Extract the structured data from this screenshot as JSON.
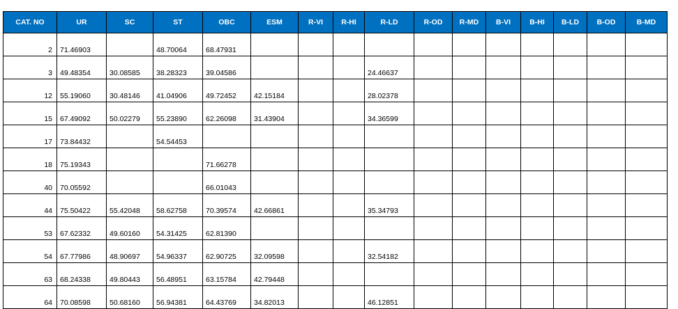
{
  "table": {
    "headers": [
      "CAT. NO",
      "UR",
      "SC",
      "ST",
      "OBC",
      "ESM",
      "R-VI",
      "R-HI",
      "R-LD",
      "R-OD",
      "R-MD",
      "B-VI",
      "B-HI",
      "B-LD",
      "B-OD",
      "B-MD"
    ],
    "rows": [
      [
        "2",
        "71.46903",
        "",
        "48.70064",
        "68.47931",
        "",
        "",
        "",
        "",
        "",
        "",
        "",
        "",
        "",
        "",
        ""
      ],
      [
        "3",
        "49.48354",
        "30.08585",
        "38.28323",
        "39.04586",
        "",
        "",
        "",
        "24.46637",
        "",
        "",
        "",
        "",
        "",
        "",
        ""
      ],
      [
        "12",
        "55.19060",
        "30.48146",
        "41.04906",
        "49.72452",
        "42.15184",
        "",
        "",
        "28.02378",
        "",
        "",
        "",
        "",
        "",
        "",
        ""
      ],
      [
        "15",
        "67.49092",
        "50.02279",
        "55.23890",
        "62.26098",
        "31.43904",
        "",
        "",
        "34.36599",
        "",
        "",
        "",
        "",
        "",
        "",
        ""
      ],
      [
        "17",
        "73.84432",
        "",
        "54.54453",
        "",
        "",
        "",
        "",
        "",
        "",
        "",
        "",
        "",
        "",
        "",
        ""
      ],
      [
        "18",
        "75.19343",
        "",
        "",
        "71.66278",
        "",
        "",
        "",
        "",
        "",
        "",
        "",
        "",
        "",
        "",
        ""
      ],
      [
        "40",
        "70.05592",
        "",
        "",
        "66.01043",
        "",
        "",
        "",
        "",
        "",
        "",
        "",
        "",
        "",
        "",
        ""
      ],
      [
        "44",
        "75.50422",
        "55.42048",
        "58.62758",
        "70.39574",
        "42.66861",
        "",
        "",
        "35.34793",
        "",
        "",
        "",
        "",
        "",
        "",
        ""
      ],
      [
        "53",
        "67.62332",
        "49.60160",
        "54.31425",
        "62.81390",
        "",
        "",
        "",
        "",
        "",
        "",
        "",
        "",
        "",
        "",
        ""
      ],
      [
        "54",
        "67.77986",
        "48.90697",
        "54.96337",
        "62.90725",
        "32.09598",
        "",
        "",
        "32.54182",
        "",
        "",
        "",
        "",
        "",
        "",
        ""
      ],
      [
        "63",
        "68.24338",
        "49.80443",
        "56.48951",
        "63.15784",
        "42.79448",
        "",
        "",
        "",
        "",
        "",
        "",
        "",
        "",
        "",
        ""
      ],
      [
        "64",
        "70.08598",
        "50.68160",
        "56.94381",
        "64.43769",
        "34.82013",
        "",
        "",
        "46.12851",
        "",
        "",
        "",
        "",
        "",
        "",
        ""
      ]
    ]
  }
}
